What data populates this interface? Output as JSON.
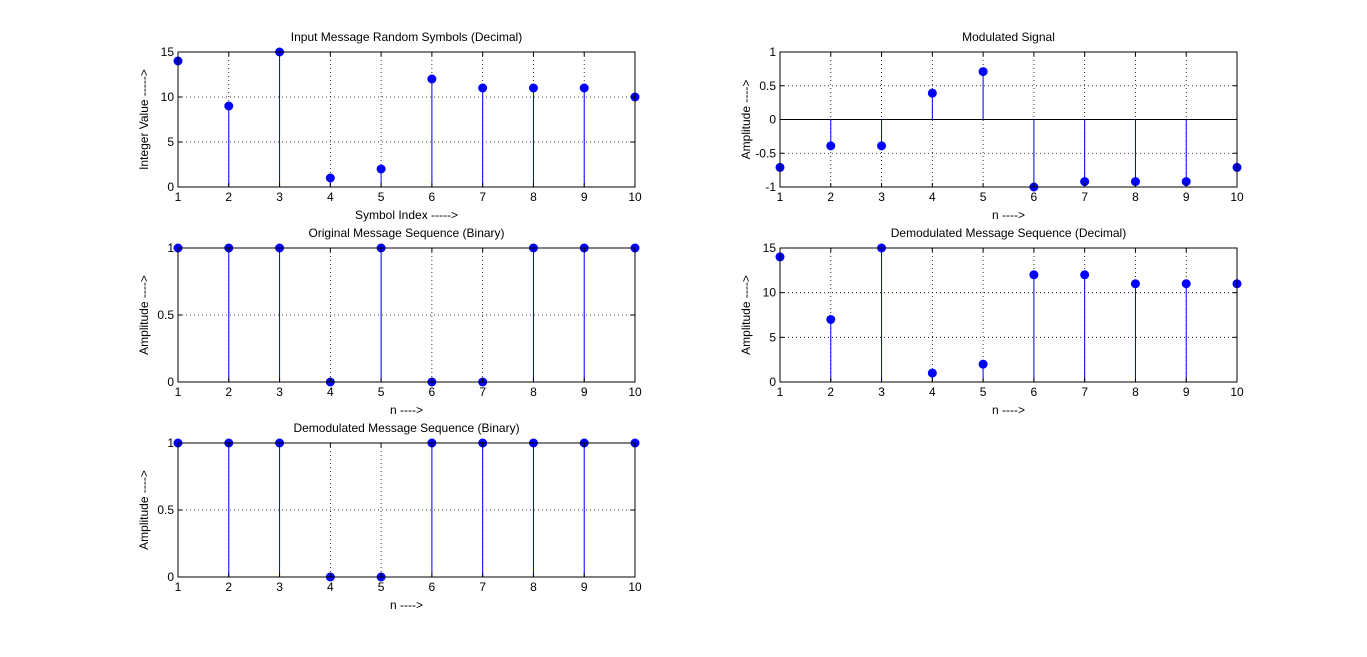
{
  "window": {
    "background": "#ffffff"
  },
  "colors": {
    "stem": "#0000ff",
    "marker": "#0000ff",
    "axis": "#000000",
    "grid": "#000000"
  },
  "chart_data": [
    {
      "id": "input-symbols",
      "type": "stem",
      "title": "Input Message Random Symbols (Decimal)",
      "xlabel": "Symbol Index ----->",
      "ylabel": "Integer Value ----->",
      "xlim": [
        1,
        10
      ],
      "ylim": [
        0,
        15
      ],
      "xticks": [
        1,
        2,
        3,
        4,
        5,
        6,
        7,
        8,
        9,
        10
      ],
      "yticks": [
        0,
        5,
        10,
        15
      ],
      "grid": true,
      "x": [
        1,
        2,
        3,
        4,
        5,
        6,
        7,
        8,
        9,
        10
      ],
      "values": [
        14,
        9,
        15,
        1,
        2,
        12,
        11,
        11,
        11,
        10
      ]
    },
    {
      "id": "modulated-signal",
      "type": "stem",
      "title": "Modulated Signal",
      "xlabel": "n ---->",
      "ylabel": "Amplitude ---->",
      "xlim": [
        1,
        10
      ],
      "ylim": [
        -1,
        1
      ],
      "xticks": [
        1,
        2,
        3,
        4,
        5,
        6,
        7,
        8,
        9,
        10
      ],
      "yticks": [
        -1,
        -0.5,
        0,
        0.5,
        1
      ],
      "grid": true,
      "x": [
        1,
        2,
        3,
        4,
        5,
        6,
        7,
        8,
        9,
        10
      ],
      "values": [
        -0.71,
        -0.39,
        -0.39,
        0.39,
        0.71,
        -1,
        -0.92,
        -0.92,
        -0.92,
        -0.71
      ]
    },
    {
      "id": "original-binary",
      "type": "stem",
      "title": "Original Message Sequence (Binary)",
      "xlabel": "n ---->",
      "ylabel": "Amplitude ---->",
      "xlim": [
        1,
        10
      ],
      "ylim": [
        0,
        1
      ],
      "xticks": [
        1,
        2,
        3,
        4,
        5,
        6,
        7,
        8,
        9,
        10
      ],
      "yticks": [
        0,
        0.5,
        1
      ],
      "grid": true,
      "x": [
        1,
        2,
        3,
        4,
        5,
        6,
        7,
        8,
        9,
        10
      ],
      "values": [
        1,
        1,
        1,
        0,
        1,
        0,
        0,
        1,
        1,
        1
      ]
    },
    {
      "id": "demod-decimal",
      "type": "stem",
      "title": "Demodulated Message Sequence (Decimal)",
      "xlabel": "n ---->",
      "ylabel": "Amplitude ---->",
      "xlim": [
        1,
        10
      ],
      "ylim": [
        0,
        15
      ],
      "xticks": [
        1,
        2,
        3,
        4,
        5,
        6,
        7,
        8,
        9,
        10
      ],
      "yticks": [
        0,
        5,
        10,
        15
      ],
      "grid": true,
      "x": [
        1,
        2,
        3,
        4,
        5,
        6,
        7,
        8,
        9,
        10
      ],
      "values": [
        14,
        7,
        15,
        1,
        2,
        12,
        12,
        11,
        11,
        11
      ]
    },
    {
      "id": "demod-binary",
      "type": "stem",
      "title": "Demodulated Message Sequence (Binary)",
      "xlabel": "n ---->",
      "ylabel": "Amplitude ---->",
      "xlim": [
        1,
        10
      ],
      "ylim": [
        0,
        1
      ],
      "xticks": [
        1,
        2,
        3,
        4,
        5,
        6,
        7,
        8,
        9,
        10
      ],
      "yticks": [
        0,
        0.5,
        1
      ],
      "grid": true,
      "x": [
        1,
        2,
        3,
        4,
        5,
        6,
        7,
        8,
        9,
        10
      ],
      "values": [
        1,
        1,
        1,
        0,
        0,
        1,
        1,
        1,
        1,
        1
      ]
    }
  ]
}
